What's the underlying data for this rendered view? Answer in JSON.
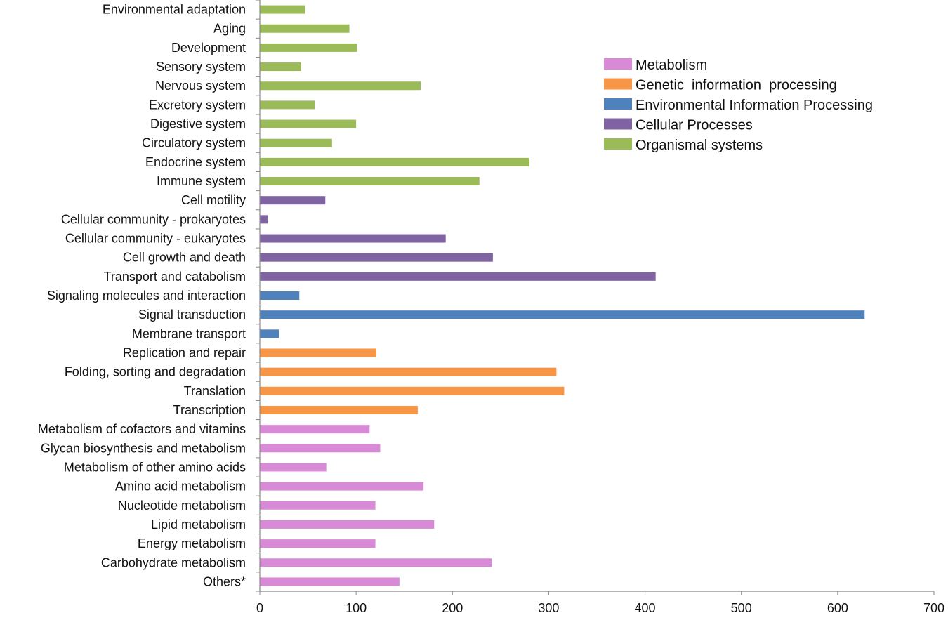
{
  "chart_data": {
    "type": "bar",
    "orientation": "horizontal",
    "title": "",
    "xlabel": "",
    "ylabel": "",
    "xlim": [
      0,
      700
    ],
    "xticks": [
      0,
      100,
      200,
      300,
      400,
      500,
      600,
      700
    ],
    "grid": false,
    "legend_position": "top-right",
    "groups": [
      {
        "name": "Metabolism",
        "color": "#d98ad6"
      },
      {
        "name": "Genetic  information  processing",
        "color": "#f79646"
      },
      {
        "name": "Environmental Information Processing",
        "color": "#4f81bd"
      },
      {
        "name": "Cellular Processes",
        "color": "#8064a2"
      },
      {
        "name": "Organismal systems",
        "color": "#9bbb59"
      }
    ],
    "categories": [
      {
        "label": "Environmental adaptation",
        "value": 47,
        "group": 4
      },
      {
        "label": "Aging",
        "value": 93,
        "group": 4
      },
      {
        "label": "Development",
        "value": 101,
        "group": 4
      },
      {
        "label": "Sensory system",
        "value": 43,
        "group": 4
      },
      {
        "label": "Nervous system",
        "value": 167,
        "group": 4
      },
      {
        "label": "Excretory system",
        "value": 57,
        "group": 4
      },
      {
        "label": "Digestive system",
        "value": 100,
        "group": 4
      },
      {
        "label": "Circulatory system",
        "value": 75,
        "group": 4
      },
      {
        "label": "Endocrine system",
        "value": 280,
        "group": 4
      },
      {
        "label": "Immune system",
        "value": 228,
        "group": 4
      },
      {
        "label": "Cell motility",
        "value": 68,
        "group": 3
      },
      {
        "label": "Cellular community - prokaryotes",
        "value": 8,
        "group": 3
      },
      {
        "label": "Cellular community - eukaryotes",
        "value": 193,
        "group": 3
      },
      {
        "label": "Cell growth and death",
        "value": 242,
        "group": 3
      },
      {
        "label": "Transport and catabolism",
        "value": 411,
        "group": 3
      },
      {
        "label": "Signaling molecules and interaction",
        "value": 41,
        "group": 2
      },
      {
        "label": "Signal transduction",
        "value": 628,
        "group": 2
      },
      {
        "label": "Membrane transport",
        "value": 20,
        "group": 2
      },
      {
        "label": "Replication and repair",
        "value": 121,
        "group": 1
      },
      {
        "label": "Folding, sorting and degradation",
        "value": 308,
        "group": 1
      },
      {
        "label": "Translation",
        "value": 316,
        "group": 1
      },
      {
        "label": "Transcription",
        "value": 164,
        "group": 1
      },
      {
        "label": "Metabolism of cofactors and vitamins",
        "value": 114,
        "group": 0
      },
      {
        "label": "Glycan biosynthesis and metabolism",
        "value": 125,
        "group": 0
      },
      {
        "label": "Metabolism of other amino acids",
        "value": 69,
        "group": 0
      },
      {
        "label": "Amino acid metabolism",
        "value": 170,
        "group": 0
      },
      {
        "label": "Nucleotide metabolism",
        "value": 120,
        "group": 0
      },
      {
        "label": "Lipid metabolism",
        "value": 181,
        "group": 0
      },
      {
        "label": "Energy metabolism",
        "value": 120,
        "group": 0
      },
      {
        "label": "Carbohydrate metabolism",
        "value": 241,
        "group": 0
      },
      {
        "label": "Others*",
        "value": 145,
        "group": 0
      }
    ]
  }
}
